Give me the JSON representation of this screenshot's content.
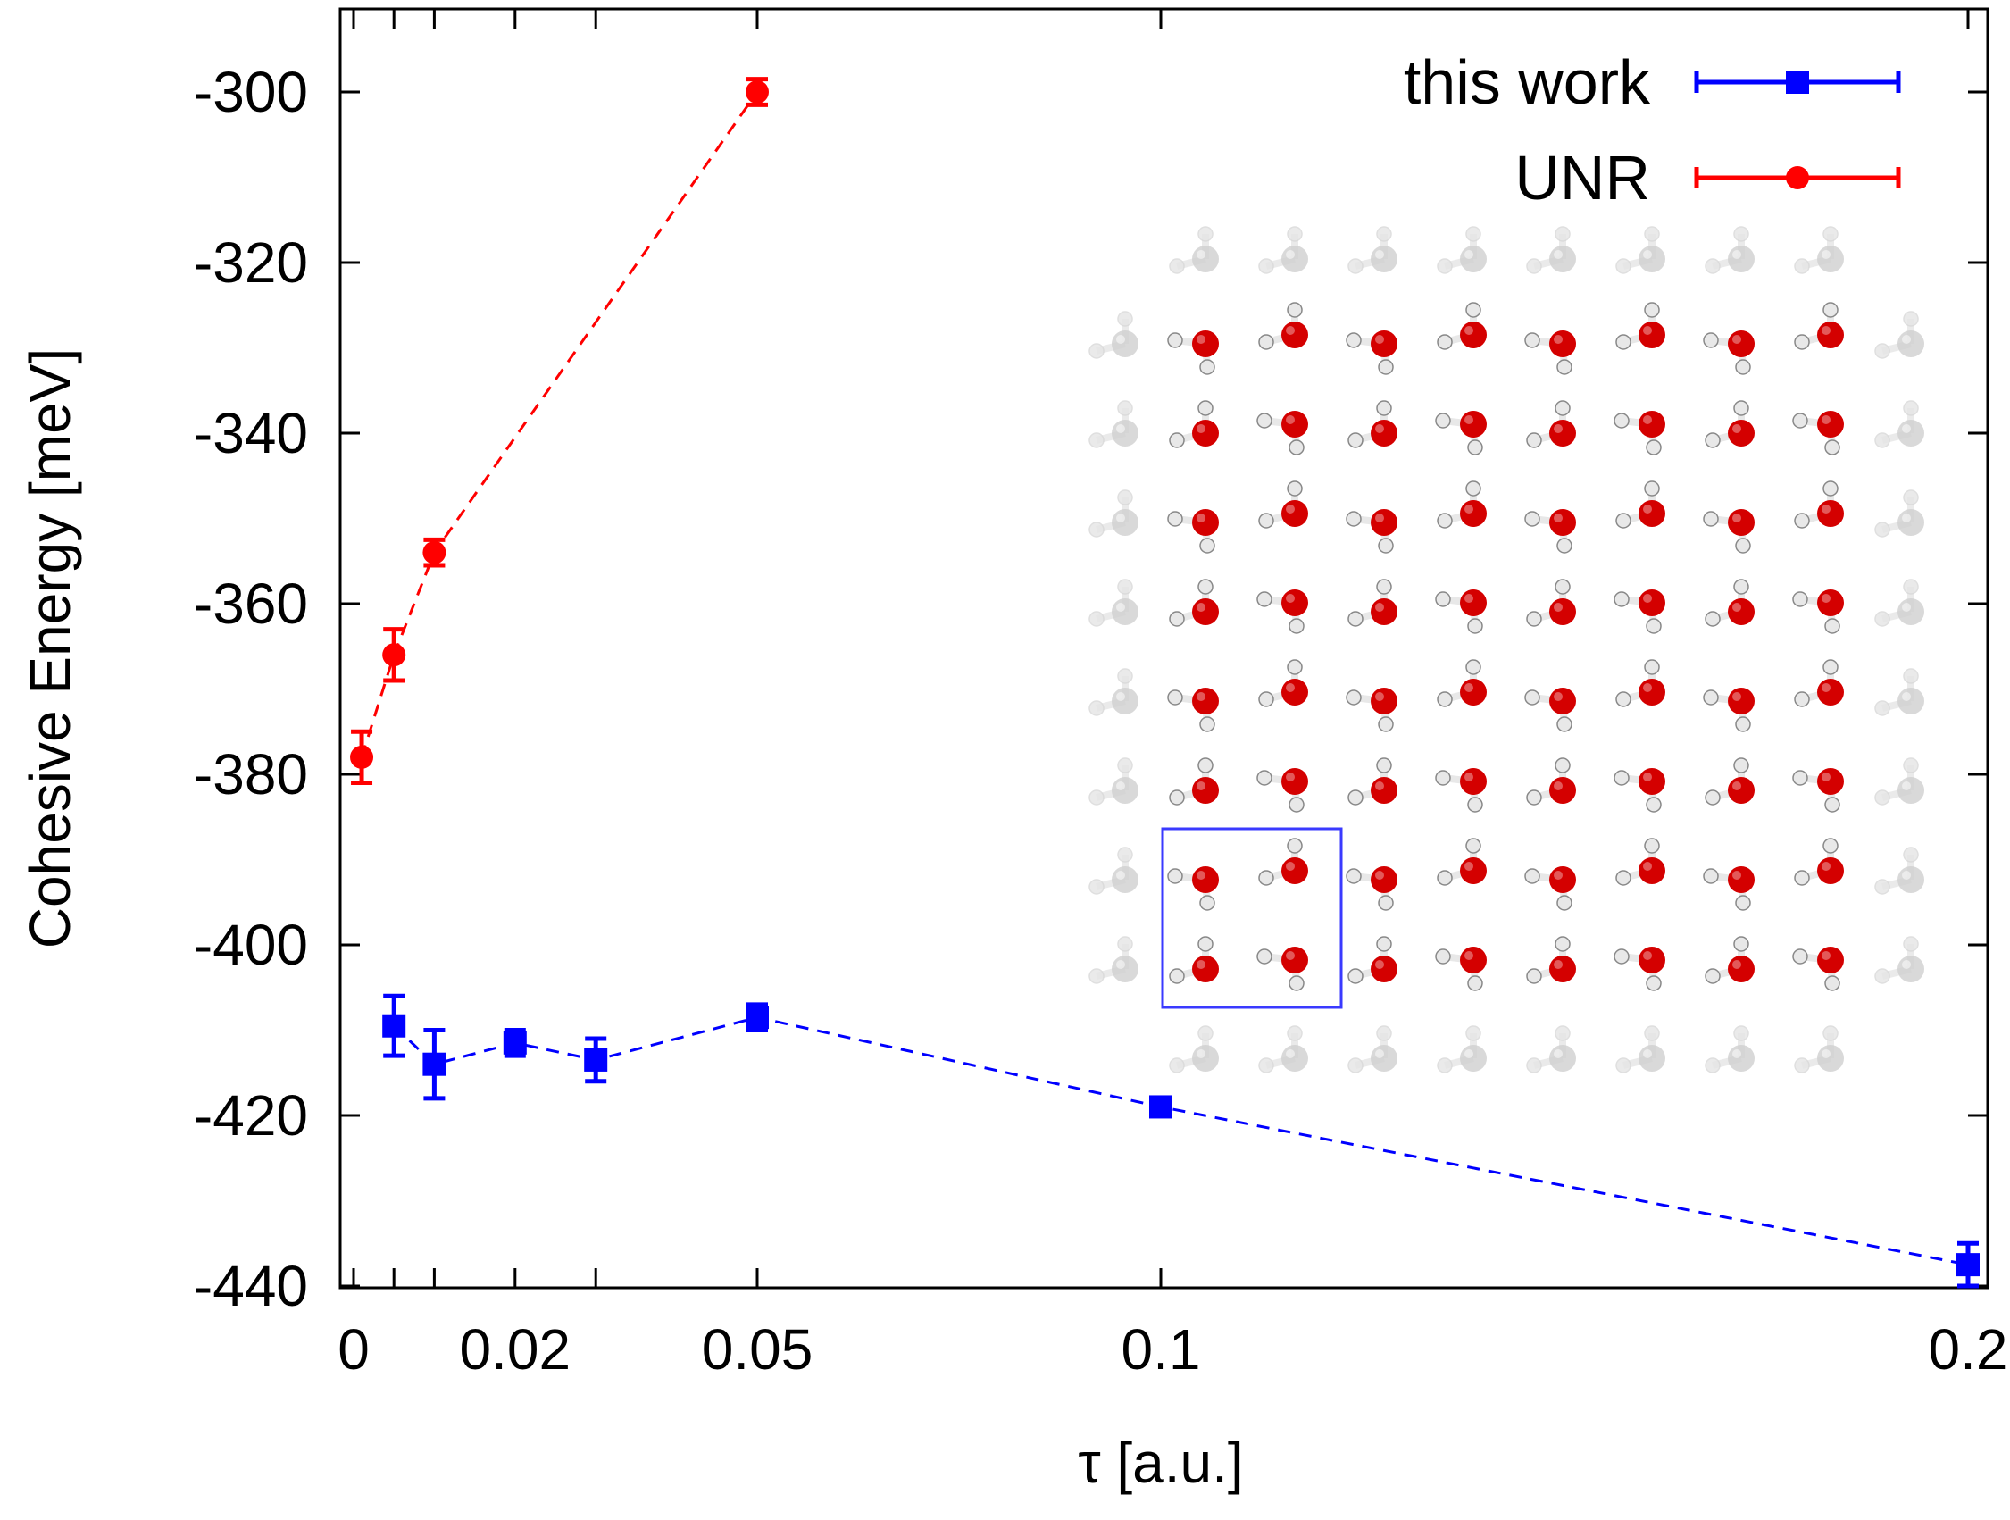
{
  "chart_data": {
    "type": "line",
    "xlabel": "τ [a.u.]",
    "ylabel": "Cohesive Energy [meV]",
    "xlim": [
      -0.002,
      0.205
    ],
    "ylim": [
      -440,
      -290
    ],
    "xticks": [
      {
        "value": 0,
        "label": "0"
      },
      {
        "value": 0.02,
        "label": "0.02"
      },
      {
        "value": 0.05,
        "label": "0.05"
      },
      {
        "value": 0.1,
        "label": "0.1"
      },
      {
        "value": 0.2,
        "label": "0.2"
      }
    ],
    "xticks_minor": [
      0.005,
      0.01,
      0.03
    ],
    "yticks": [
      -300,
      -320,
      -340,
      -360,
      -380,
      -400,
      -420,
      -440
    ],
    "legend_position": "top-right",
    "series": [
      {
        "name": "this work",
        "color": "#0000ff",
        "marker": "square",
        "points": [
          {
            "x": 0.005,
            "y": -409.5,
            "err": 3.5
          },
          {
            "x": 0.01,
            "y": -414,
            "err": 4
          },
          {
            "x": 0.02,
            "y": -411.5,
            "err": 1.5
          },
          {
            "x": 0.03,
            "y": -413.5,
            "err": 2.5
          },
          {
            "x": 0.05,
            "y": -408.5,
            "err": 1.5
          },
          {
            "x": 0.1,
            "y": -419,
            "err": 0.5
          },
          {
            "x": 0.2,
            "y": -437.5,
            "err": 2.5
          }
        ]
      },
      {
        "name": "UNR",
        "color": "#ff0000",
        "marker": "circle",
        "points": [
          {
            "x": 0.001,
            "y": -378,
            "err": 3
          },
          {
            "x": 0.005,
            "y": -366,
            "err": 3
          },
          {
            "x": 0.01,
            "y": -354,
            "err": 1.5
          },
          {
            "x": 0.05,
            "y": -300,
            "err": 1.5
          }
        ]
      }
    ],
    "inset": {
      "description": "water molecule lattice",
      "oxygen_color": "#d40000",
      "hydrogen_color": "#e8e8e8",
      "faded_color": "#cfcfcf",
      "highlight_box_color": "#3a3aff"
    }
  }
}
